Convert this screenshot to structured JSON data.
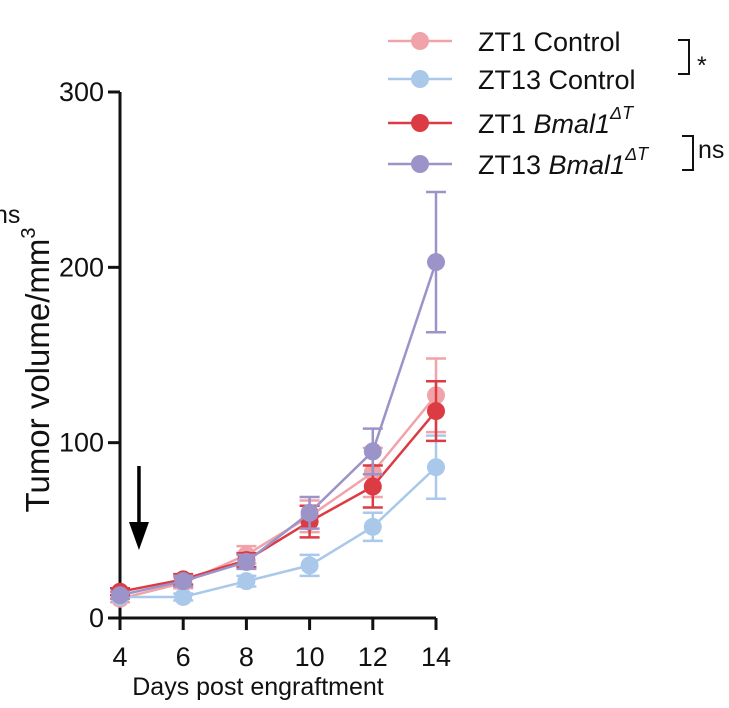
{
  "chart_data": {
    "type": "line",
    "title": "",
    "xlabel": "Days post engraftment",
    "ylabel": "Tumor volume/mm",
    "ylabel_superscript": "3",
    "x": [
      4,
      6,
      8,
      10,
      12,
      14
    ],
    "xlim": [
      4,
      14
    ],
    "ylim": [
      0,
      300
    ],
    "xticks": [
      "4",
      "6",
      "8",
      "10",
      "12",
      "14"
    ],
    "yticks": [
      "0",
      "100",
      "200",
      "300"
    ],
    "arrow_annotation_x": 4.6,
    "cropped_left_label": "ns",
    "series": [
      {
        "name": "ZT1 Control",
        "color": "#f0a3a8",
        "values": [
          11,
          20,
          36,
          58,
          83,
          127
        ],
        "errors": [
          2,
          3,
          5,
          9,
          14,
          21
        ]
      },
      {
        "name": "ZT13 Control",
        "color": "#a9c8ea",
        "values": [
          12,
          12,
          21,
          30,
          52,
          86
        ],
        "errors": [
          1,
          2,
          3,
          6,
          8,
          18
        ]
      },
      {
        "name": "ZT1 Bmal1",
        "name_prefix": "ZT1",
        "gene": "Bmal1",
        "gene_sup": "ΔT",
        "color": "#dc3b43",
        "values": [
          15,
          22,
          33,
          55,
          75,
          118
        ],
        "errors": [
          2,
          3,
          4,
          9,
          12,
          17
        ]
      },
      {
        "name": "ZT13 Bmal1",
        "name_prefix": "ZT13",
        "gene": "Bmal1",
        "gene_sup": "ΔT",
        "color": "#9c93c9",
        "values": [
          13,
          21,
          32,
          60,
          95,
          203
        ],
        "errors": [
          2,
          3,
          4,
          9,
          13,
          40
        ]
      }
    ],
    "significance": [
      {
        "between": [
          "ZT1 Control",
          "ZT13 Control"
        ],
        "label": "*"
      },
      {
        "between": [
          "ZT1 Bmal1",
          "ZT13 Bmal1"
        ],
        "label": "ns"
      }
    ]
  }
}
